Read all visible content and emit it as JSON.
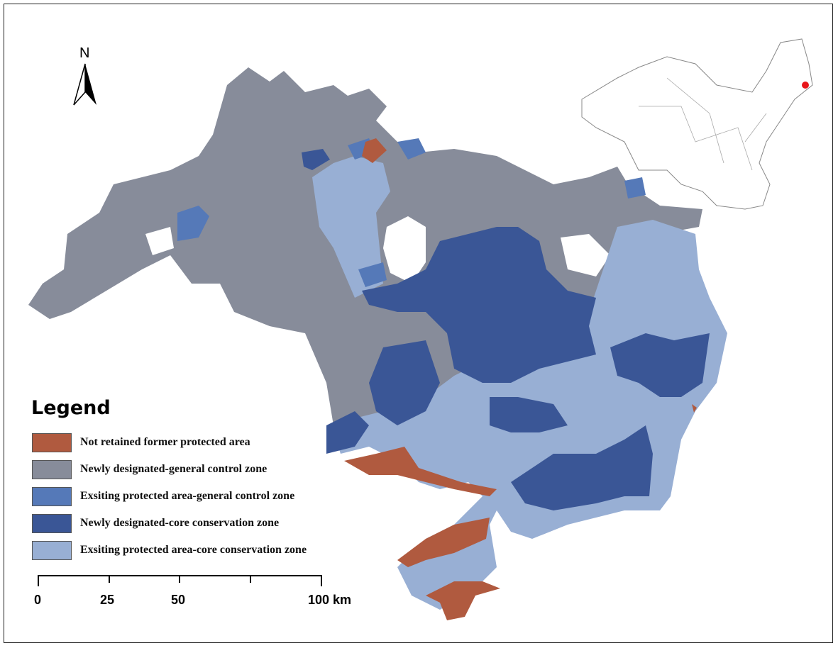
{
  "north_arrow": {
    "label": "N"
  },
  "legend": {
    "title": "Legend",
    "items": [
      {
        "label": "Not retained former protected area",
        "color": "#B05A3F"
      },
      {
        "label": "Newly designated-general control zone",
        "color": "#878C9A"
      },
      {
        "label": "Exsiting protected area-general control zone",
        "color": "#5579B8"
      },
      {
        "label": "Newly designated-core conservation zone",
        "color": "#3A5696"
      },
      {
        "label": "Exsiting protected area-core conservation zone",
        "color": "#98AFD4"
      }
    ]
  },
  "scale_bar": {
    "ticks": [
      "0",
      "25",
      "50",
      "100 km"
    ]
  },
  "inset": {
    "highlight_color": "#E8161B"
  }
}
